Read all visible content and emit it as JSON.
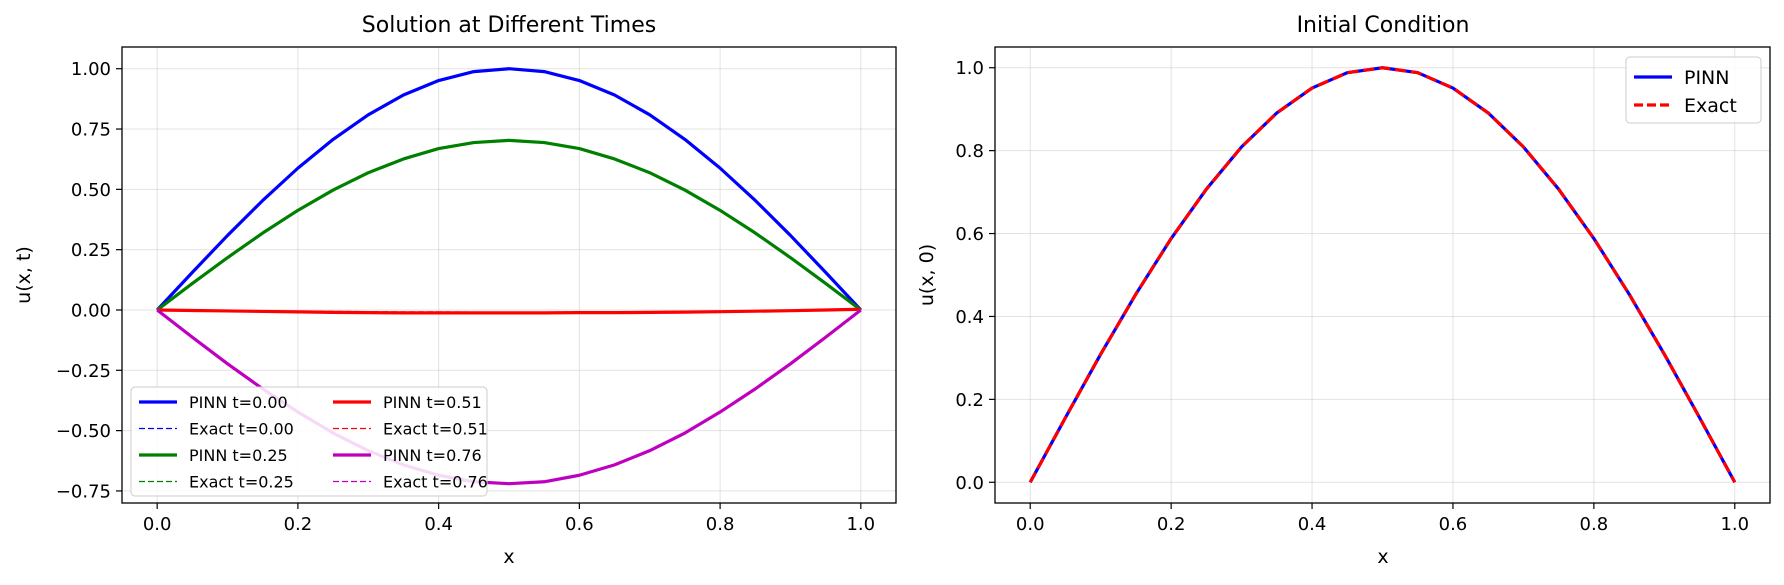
{
  "chart_data": [
    {
      "type": "line",
      "title": "Solution at Different Times",
      "xlabel": "x",
      "ylabel": "u(x, t)",
      "xlim": [
        -0.05,
        1.05
      ],
      "ylim": [
        -0.8,
        1.09
      ],
      "xticks": [
        0.0,
        0.2,
        0.4,
        0.6,
        0.8,
        1.0
      ],
      "xtick_labels": [
        "0.0",
        "0.2",
        "0.4",
        "0.6",
        "0.8",
        "1.0"
      ],
      "yticks": [
        -0.75,
        -0.5,
        -0.25,
        0.0,
        0.25,
        0.5,
        0.75,
        1.0
      ],
      "ytick_labels": [
        "−0.75",
        "−0.50",
        "−0.25",
        "0.00",
        "0.25",
        "0.50",
        "0.75",
        "1.00"
      ],
      "grid": true,
      "legend_position": "lower-left",
      "legend_columns": 2,
      "x": [
        0.0,
        0.05,
        0.1,
        0.15,
        0.2,
        0.25,
        0.3,
        0.35,
        0.4,
        0.45,
        0.5,
        0.55,
        0.6,
        0.65,
        0.7,
        0.75,
        0.8,
        0.85,
        0.9,
        0.95,
        1.0
      ],
      "series": [
        {
          "name": "PINN t=0.00",
          "color": "#0000ff",
          "style": "solid",
          "values": [
            0.0,
            0.156,
            0.309,
            0.454,
            0.588,
            0.707,
            0.809,
            0.891,
            0.951,
            0.988,
            1.0,
            0.988,
            0.951,
            0.891,
            0.809,
            0.707,
            0.588,
            0.454,
            0.309,
            0.156,
            0.0
          ]
        },
        {
          "name": "Exact t=0.00",
          "color": "#0000ff",
          "style": "dashed",
          "values": [
            0.0,
            0.156,
            0.309,
            0.454,
            0.588,
            0.707,
            0.809,
            0.891,
            0.951,
            0.988,
            1.0,
            0.988,
            0.951,
            0.891,
            0.809,
            0.707,
            0.588,
            0.454,
            0.309,
            0.156,
            0.0
          ]
        },
        {
          "name": "PINN t=0.25",
          "color": "#008000",
          "style": "solid",
          "values": [
            0.0,
            0.11,
            0.217,
            0.319,
            0.413,
            0.497,
            0.569,
            0.626,
            0.669,
            0.694,
            0.703,
            0.694,
            0.669,
            0.626,
            0.569,
            0.497,
            0.413,
            0.319,
            0.217,
            0.11,
            0.0
          ]
        },
        {
          "name": "Exact t=0.25",
          "color": "#008000",
          "style": "dashed",
          "values": [
            0.0,
            0.11,
            0.217,
            0.319,
            0.413,
            0.497,
            0.569,
            0.626,
            0.669,
            0.694,
            0.703,
            0.694,
            0.669,
            0.626,
            0.569,
            0.497,
            0.413,
            0.319,
            0.217,
            0.11,
            0.0
          ]
        },
        {
          "name": "PINN t=0.51",
          "color": "#ff0000",
          "style": "solid",
          "values": [
            0.0,
            -0.002,
            -0.004,
            -0.006,
            -0.008,
            -0.01,
            -0.011,
            -0.012,
            -0.012,
            -0.012,
            -0.012,
            -0.012,
            -0.011,
            -0.011,
            -0.01,
            -0.009,
            -0.007,
            -0.005,
            -0.003,
            0.0,
            0.003
          ]
        },
        {
          "name": "Exact t=0.51",
          "color": "#ff0000",
          "style": "dashed",
          "values": [
            0.0,
            -0.001,
            -0.003,
            -0.004,
            -0.005,
            -0.006,
            -0.007,
            -0.008,
            -0.008,
            -0.009,
            -0.009,
            -0.009,
            -0.008,
            -0.008,
            -0.007,
            -0.006,
            -0.005,
            -0.004,
            -0.003,
            -0.001,
            0.0
          ]
        },
        {
          "name": "PINN t=0.76",
          "color": "#bf00bf",
          "style": "solid",
          "values": [
            0.0,
            -0.113,
            -0.223,
            -0.327,
            -0.423,
            -0.51,
            -0.583,
            -0.642,
            -0.685,
            -0.712,
            -0.72,
            -0.712,
            -0.685,
            -0.642,
            -0.583,
            -0.51,
            -0.423,
            -0.327,
            -0.223,
            -0.113,
            0.0
          ]
        },
        {
          "name": "Exact t=0.76",
          "color": "#bf00bf",
          "style": "dashed",
          "values": [
            0.0,
            -0.113,
            -0.223,
            -0.327,
            -0.423,
            -0.51,
            -0.583,
            -0.642,
            -0.685,
            -0.712,
            -0.72,
            -0.712,
            -0.685,
            -0.642,
            -0.583,
            -0.51,
            -0.423,
            -0.327,
            -0.223,
            -0.113,
            0.0
          ]
        }
      ]
    },
    {
      "type": "line",
      "title": "Initial Condition",
      "xlabel": "x",
      "ylabel": "u(x, 0)",
      "xlim": [
        -0.05,
        1.05
      ],
      "ylim": [
        -0.05,
        1.05
      ],
      "xticks": [
        0.0,
        0.2,
        0.4,
        0.6,
        0.8,
        1.0
      ],
      "xtick_labels": [
        "0.0",
        "0.2",
        "0.4",
        "0.6",
        "0.8",
        "1.0"
      ],
      "yticks": [
        0.0,
        0.2,
        0.4,
        0.6,
        0.8,
        1.0
      ],
      "ytick_labels": [
        "0.0",
        "0.2",
        "0.4",
        "0.6",
        "0.8",
        "1.0"
      ],
      "grid": true,
      "legend_position": "upper-right",
      "legend_columns": 1,
      "x": [
        0.0,
        0.05,
        0.1,
        0.15,
        0.2,
        0.25,
        0.3,
        0.35,
        0.4,
        0.45,
        0.5,
        0.55,
        0.6,
        0.65,
        0.7,
        0.75,
        0.8,
        0.85,
        0.9,
        0.95,
        1.0
      ],
      "series": [
        {
          "name": "PINN",
          "color": "#0000ff",
          "style": "solid",
          "values": [
            0.0,
            0.156,
            0.309,
            0.454,
            0.588,
            0.707,
            0.809,
            0.891,
            0.951,
            0.988,
            1.0,
            0.988,
            0.951,
            0.891,
            0.809,
            0.707,
            0.588,
            0.454,
            0.309,
            0.156,
            0.0
          ]
        },
        {
          "name": "Exact",
          "color": "#ff0000",
          "style": "dashed",
          "values": [
            0.0,
            0.156,
            0.309,
            0.454,
            0.588,
            0.707,
            0.809,
            0.891,
            0.951,
            0.988,
            1.0,
            0.988,
            0.951,
            0.891,
            0.809,
            0.707,
            0.588,
            0.454,
            0.309,
            0.156,
            0.0
          ]
        }
      ]
    }
  ]
}
